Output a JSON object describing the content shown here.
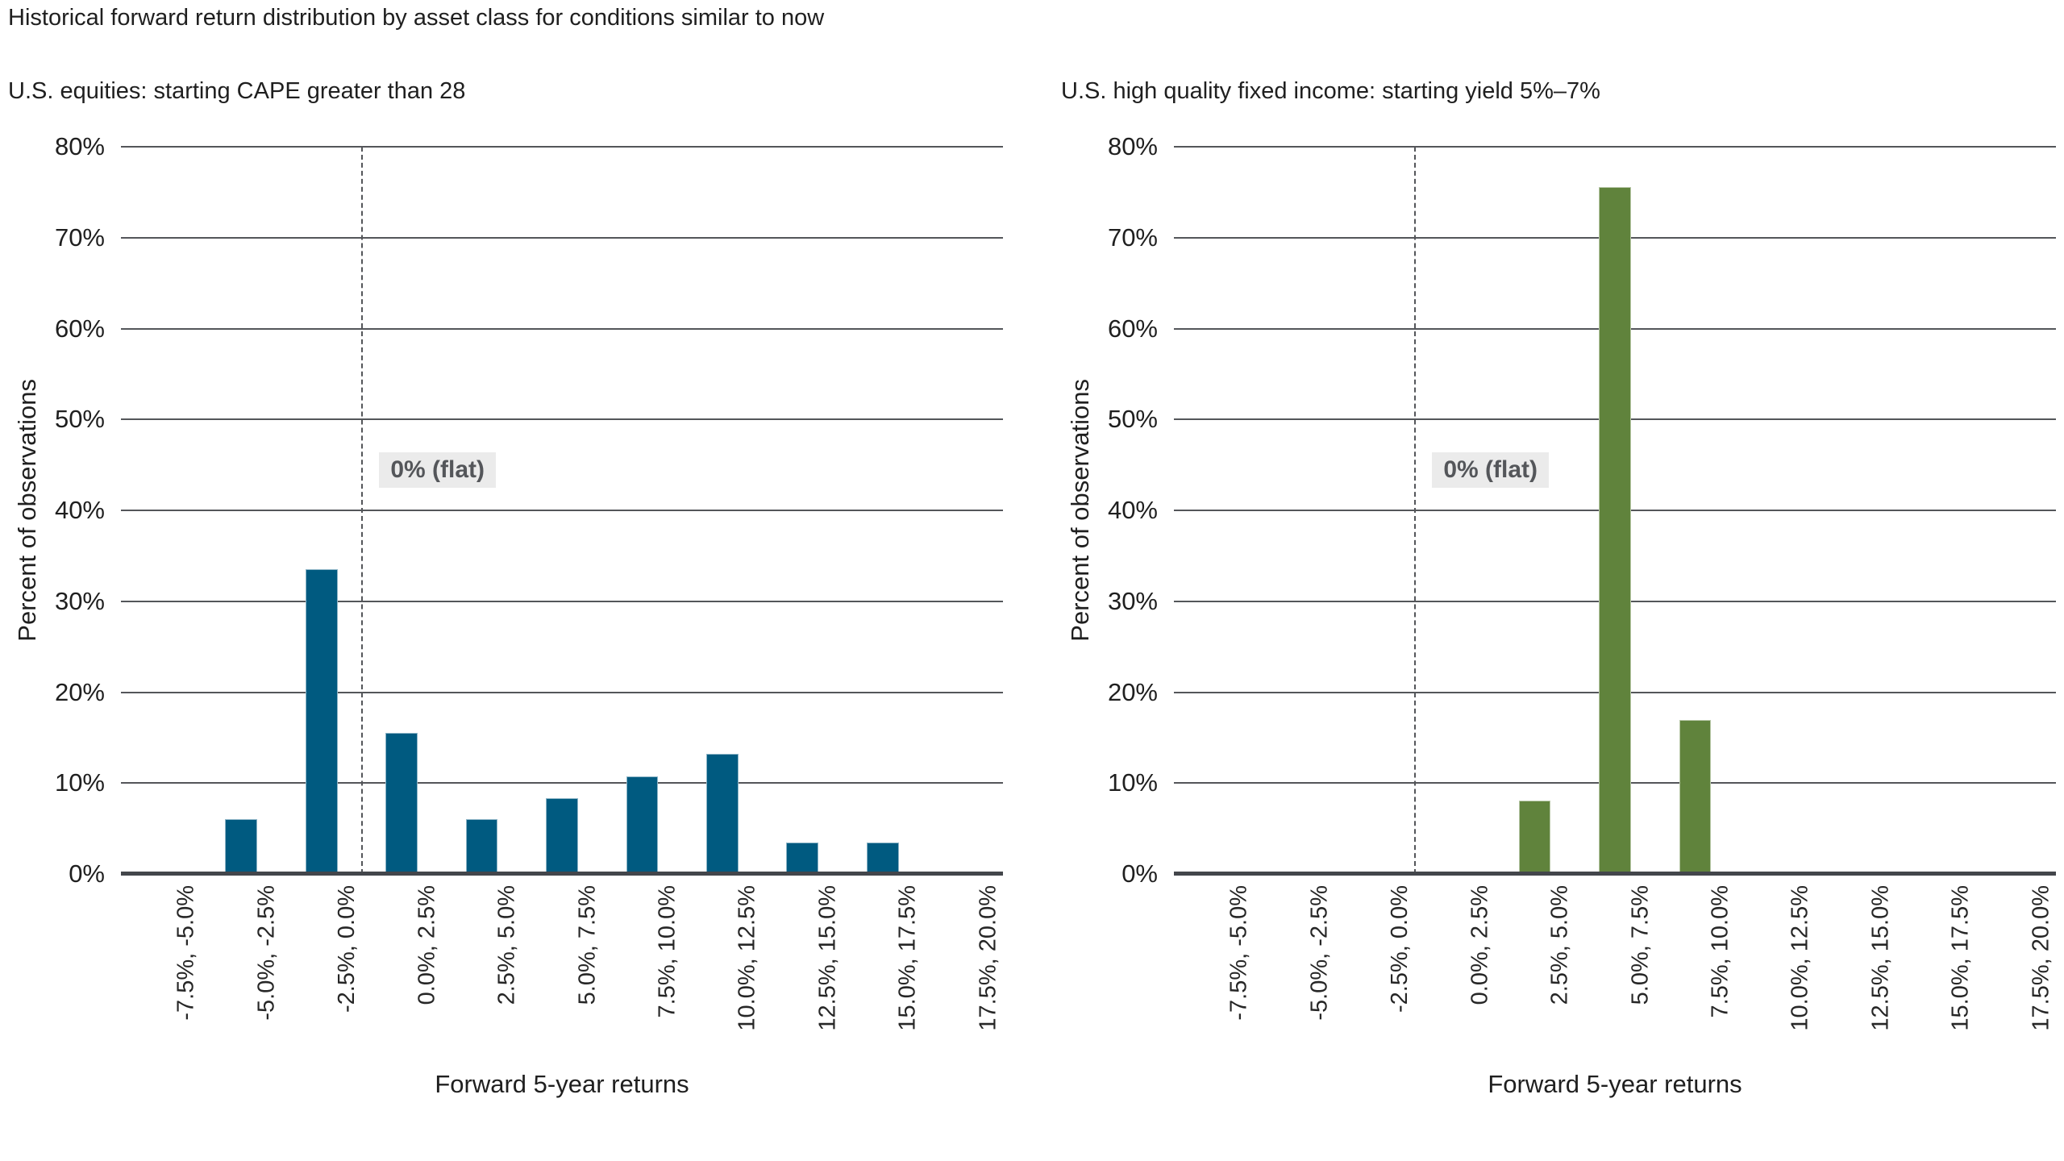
{
  "title": "Historical forward return distribution by asset class for conditions similar to now",
  "colors": {
    "equities_bar": "#005a80",
    "fixed_income_bar": "#60833c",
    "gridline": "#54565a",
    "baseline": "#43464b",
    "flat_bg": "#ebebeb",
    "flat_text": "#54565a",
    "text": "#1f1f1f"
  },
  "chart_data": [
    {
      "type": "bar",
      "title": "U.S. equities: starting CAPE greater than 28",
      "categories": [
        "-7.5%, -5.0%",
        "-5.0%, -2.5%",
        "-2.5%, 0.0%",
        "0.0%, 2.5%",
        "2.5%, 5.0%",
        "5.0%, 7.5%",
        "7.5%, 10.0%",
        "10.0%, 12.5%",
        "12.5%, 15.0%",
        "15.0%, 17.5%",
        "17.5%, 20.0%"
      ],
      "values": [
        0,
        6,
        33.5,
        15.5,
        6,
        8.3,
        10.7,
        13.2,
        3.5,
        3.5,
        0
      ],
      "xlabel": "Forward 5-year returns",
      "ylabel": "Percent of observations",
      "ylim": [
        0,
        80
      ],
      "ytick_step": 10,
      "ytick_suffix": "%",
      "grid": true,
      "legend": "none",
      "bar_color": "#005a80",
      "zero_line_after_index": 2,
      "annotation": "0% (flat)"
    },
    {
      "type": "bar",
      "title": "U.S. high quality fixed income: starting yield 5%–7%",
      "categories": [
        "-7.5%, -5.0%",
        "-5.0%, -2.5%",
        "-2.5%, 0.0%",
        "0.0%, 2.5%",
        "2.5%, 5.0%",
        "5.0%, 7.5%",
        "7.5%, 10.0%",
        "10.0%, 12.5%",
        "12.5%, 15.0%",
        "15.0%, 17.5%",
        "17.5%, 20.0%"
      ],
      "values": [
        0,
        0,
        0,
        0,
        8.1,
        75.6,
        16.9,
        0,
        0,
        0,
        0
      ],
      "xlabel": "Forward 5-year returns",
      "ylabel": "Percent of observations",
      "ylim": [
        0,
        80
      ],
      "ytick_step": 10,
      "ytick_suffix": "%",
      "grid": true,
      "legend": "none",
      "bar_color": "#60833c",
      "zero_line_after_index": 2,
      "annotation": "0% (flat)"
    }
  ]
}
